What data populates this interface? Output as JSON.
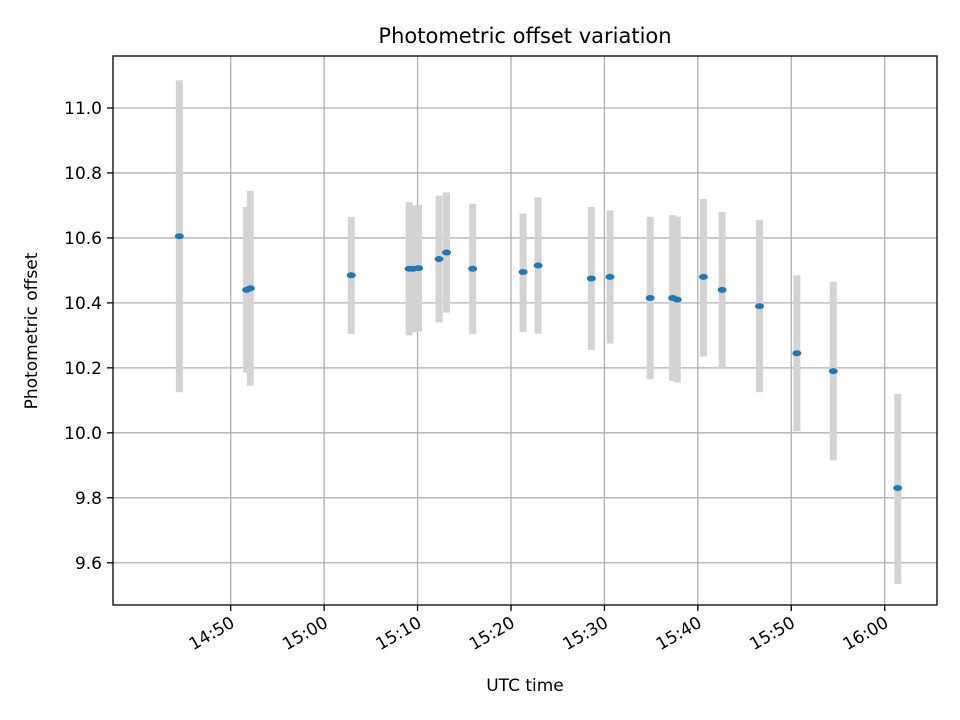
{
  "chart_data": {
    "type": "scatter",
    "title": "Photometric offset variation",
    "xlabel": "UTC time",
    "ylabel": "Photometric offset",
    "x_unit": "time of day (HH:MM, UTC)",
    "xlim": [
      "14:37:24",
      "16:05:36"
    ],
    "ylim": [
      9.47,
      11.16
    ],
    "x_ticks": [
      "14:50",
      "15:00",
      "15:10",
      "15:20",
      "15:30",
      "15:40",
      "15:50",
      "16:00"
    ],
    "y_ticks": [
      "9.6",
      "9.8",
      "10.0",
      "10.2",
      "10.4",
      "10.6",
      "10.8",
      "11.0"
    ],
    "grid": true,
    "colors": {
      "marker": "#1f77b4",
      "errorbar": "#d3d3d3",
      "grid": "#b0b0b0",
      "axes": "#000000"
    },
    "points": [
      {
        "x": "14:44:30",
        "y": 10.605,
        "ylow": 10.125,
        "yhigh": 11.085
      },
      {
        "x": "14:51:42",
        "y": 10.44,
        "ylow": 10.185,
        "yhigh": 10.695
      },
      {
        "x": "14:52:06",
        "y": 10.445,
        "ylow": 10.145,
        "yhigh": 10.745
      },
      {
        "x": "15:02:54",
        "y": 10.485,
        "ylow": 10.305,
        "yhigh": 10.665
      },
      {
        "x": "15:09:06",
        "y": 10.505,
        "ylow": 10.3,
        "yhigh": 10.71
      },
      {
        "x": "15:09:30",
        "y": 10.505,
        "ylow": 10.31,
        "yhigh": 10.7
      },
      {
        "x": "15:10:06",
        "y": 10.507,
        "ylow": 10.312,
        "yhigh": 10.702
      },
      {
        "x": "15:12:18",
        "y": 10.535,
        "ylow": 10.34,
        "yhigh": 10.73
      },
      {
        "x": "15:13:06",
        "y": 10.555,
        "ylow": 10.37,
        "yhigh": 10.74
      },
      {
        "x": "15:15:54",
        "y": 10.505,
        "ylow": 10.305,
        "yhigh": 10.705
      },
      {
        "x": "15:21:18",
        "y": 10.495,
        "ylow": 10.31,
        "yhigh": 10.675
      },
      {
        "x": "15:22:54",
        "y": 10.515,
        "ylow": 10.305,
        "yhigh": 10.725
      },
      {
        "x": "15:28:36",
        "y": 10.475,
        "ylow": 10.255,
        "yhigh": 10.695
      },
      {
        "x": "15:30:36",
        "y": 10.48,
        "ylow": 10.275,
        "yhigh": 10.685
      },
      {
        "x": "15:34:54",
        "y": 10.415,
        "ylow": 10.165,
        "yhigh": 10.665
      },
      {
        "x": "15:37:18",
        "y": 10.415,
        "ylow": 10.16,
        "yhigh": 10.67
      },
      {
        "x": "15:37:48",
        "y": 10.41,
        "ylow": 10.155,
        "yhigh": 10.665
      },
      {
        "x": "15:40:36",
        "y": 10.48,
        "ylow": 10.235,
        "yhigh": 10.72
      },
      {
        "x": "15:42:36",
        "y": 10.44,
        "ylow": 10.2,
        "yhigh": 10.68
      },
      {
        "x": "15:46:36",
        "y": 10.39,
        "ylow": 10.125,
        "yhigh": 10.655
      },
      {
        "x": "15:50:36",
        "y": 10.245,
        "ylow": 10.005,
        "yhigh": 10.485
      },
      {
        "x": "15:54:30",
        "y": 10.19,
        "ylow": 9.915,
        "yhigh": 10.465
      },
      {
        "x": "16:01:24",
        "y": 9.83,
        "ylow": 9.535,
        "yhigh": 10.12
      }
    ]
  }
}
